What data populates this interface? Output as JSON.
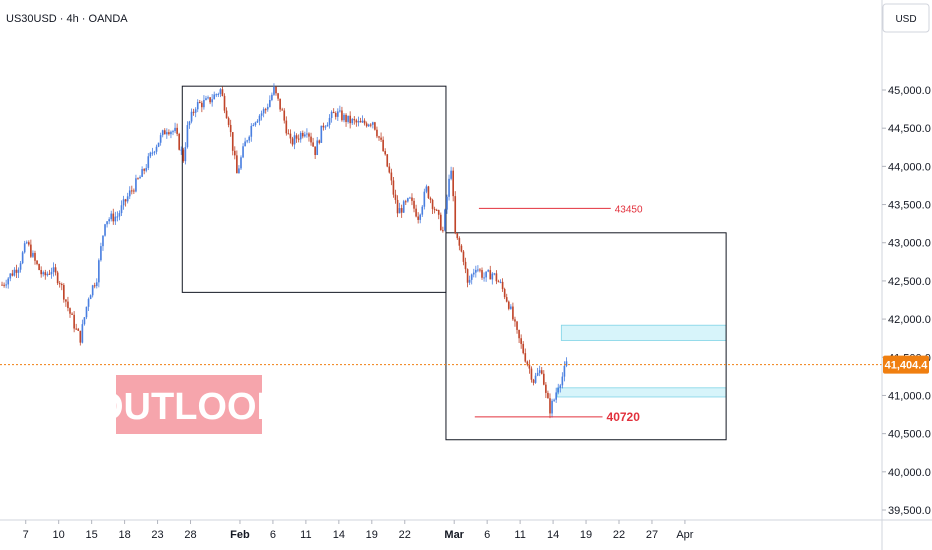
{
  "header": {
    "symbol_line": "US30USD · 4h · OANDA",
    "currency": "USD"
  },
  "colors": {
    "up": "#4a7fe0",
    "down": "#c0452a",
    "box_stroke": "#131722",
    "level_red": "#e2303c",
    "zone_fill": "#d7f4fa",
    "zone_stroke": "#7ed3e6",
    "current_price": "#f07f10",
    "outlook_bg": "#f6a5ac"
  },
  "badge": {
    "text": "OUTLOOK"
  },
  "chart_data": {
    "type": "candlestick",
    "x_tick_labels": [
      {
        "label": "7",
        "bar": 6,
        "bold": false
      },
      {
        "label": "10",
        "bar": 14,
        "bold": false
      },
      {
        "label": "15",
        "bar": 22,
        "bold": false
      },
      {
        "label": "18",
        "bar": 30,
        "bold": false
      },
      {
        "label": "23",
        "bar": 38,
        "bold": false
      },
      {
        "label": "28",
        "bar": 46,
        "bold": false
      },
      {
        "label": "Feb",
        "bar": 58,
        "bold": true
      },
      {
        "label": "6",
        "bar": 66,
        "bold": false
      },
      {
        "label": "11",
        "bar": 74,
        "bold": false
      },
      {
        "label": "14",
        "bar": 82,
        "bold": false
      },
      {
        "label": "19",
        "bar": 90,
        "bold": false
      },
      {
        "label": "22",
        "bar": 98,
        "bold": false
      },
      {
        "label": "Mar",
        "bar": 110,
        "bold": true
      },
      {
        "label": "6",
        "bar": 118,
        "bold": false
      },
      {
        "label": "11",
        "bar": 126,
        "bold": false
      },
      {
        "label": "14",
        "bar": 134,
        "bold": false
      },
      {
        "label": "19",
        "bar": 142,
        "bold": false
      },
      {
        "label": "22",
        "bar": 150,
        "bold": false
      },
      {
        "label": "27",
        "bar": 158,
        "bold": false
      },
      {
        "label": "Apr",
        "bar": 166,
        "bold": false
      }
    ],
    "y_ticks": [
      {
        "value": 45000,
        "label": "45,000.0"
      },
      {
        "value": 44500,
        "label": "44,500.0"
      },
      {
        "value": 44000,
        "label": "44,000.0"
      },
      {
        "value": 43500,
        "label": "43,500.0"
      },
      {
        "value": 43000,
        "label": "43,000.0"
      },
      {
        "value": 42500,
        "label": "42,500.0"
      },
      {
        "value": 42000,
        "label": "42,000.0"
      },
      {
        "value": 41500,
        "label": "41,500.0"
      },
      {
        "value": 41000,
        "label": "41,000.0"
      },
      {
        "value": 40500,
        "label": "40,500.0"
      },
      {
        "value": 40000,
        "label": "40,000.0"
      },
      {
        "value": 39500,
        "label": "39,500.0"
      }
    ],
    "ylim": [
      39400,
      45300
    ],
    "current_price": {
      "value": 41404.4,
      "label": "41,404.4"
    },
    "price_path": [
      [
        0,
        42450
      ],
      [
        4,
        42700
      ],
      [
        6,
        43000
      ],
      [
        8,
        42750
      ],
      [
        10,
        42550
      ],
      [
        12,
        42650
      ],
      [
        14,
        42500
      ],
      [
        16,
        42150
      ],
      [
        18,
        41850
      ],
      [
        19,
        41750
      ],
      [
        21,
        42300
      ],
      [
        23,
        42550
      ],
      [
        25,
        43300
      ],
      [
        28,
        43350
      ],
      [
        31,
        43650
      ],
      [
        34,
        43900
      ],
      [
        37,
        44250
      ],
      [
        40,
        44500
      ],
      [
        42,
        44450
      ],
      [
        44,
        44100
      ],
      [
        45,
        44500
      ],
      [
        47,
        44800
      ],
      [
        50,
        44850
      ],
      [
        53,
        45000
      ],
      [
        55,
        44600
      ],
      [
        57,
        43900
      ],
      [
        59,
        44300
      ],
      [
        61,
        44600
      ],
      [
        64,
        44750
      ],
      [
        66,
        45000
      ],
      [
        68,
        44700
      ],
      [
        70,
        44300
      ],
      [
        72,
        44400
      ],
      [
        74,
        44500
      ],
      [
        76,
        44200
      ],
      [
        78,
        44550
      ],
      [
        81,
        44700
      ],
      [
        84,
        44600
      ],
      [
        87,
        44550
      ],
      [
        90,
        44600
      ],
      [
        92,
        44300
      ],
      [
        94,
        43900
      ],
      [
        96,
        43400
      ],
      [
        99,
        43550
      ],
      [
        101,
        43350
      ],
      [
        103,
        43700
      ],
      [
        105,
        43450
      ],
      [
        107,
        43150
      ],
      [
        108,
        43600
      ],
      [
        109,
        44000
      ],
      [
        110,
        43100
      ],
      [
        112,
        42800
      ],
      [
        113,
        42450
      ],
      [
        115,
        42700
      ],
      [
        117,
        42550
      ],
      [
        119,
        42600
      ],
      [
        121,
        42450
      ],
      [
        123,
        42200
      ],
      [
        125,
        41800
      ],
      [
        127,
        41500
      ],
      [
        129,
        41200
      ],
      [
        131,
        41350
      ],
      [
        132,
        41000
      ],
      [
        133,
        40820
      ],
      [
        134,
        40950
      ],
      [
        135,
        41150
      ],
      [
        136,
        41250
      ],
      [
        137,
        41404
      ]
    ],
    "boxes": [
      {
        "bar_start": 44,
        "bar_end": 108,
        "high": 45050,
        "low": 42350
      },
      {
        "bar_start": 108,
        "bar_end": 176,
        "high": 43130,
        "low": 40420
      }
    ],
    "levels": [
      {
        "value": 43450,
        "label": "43450",
        "bar_start": 116,
        "bar_end": 148,
        "emphasis": false
      },
      {
        "value": 40720,
        "label": "40720",
        "bar_start": 115,
        "bar_end": 146,
        "emphasis": true
      }
    ],
    "zones": [
      {
        "high": 41920,
        "low": 41720,
        "bar_start": 136,
        "bar_end": 176
      },
      {
        "high": 41100,
        "low": 40980,
        "bar_start": 135,
        "bar_end": 176
      }
    ]
  }
}
